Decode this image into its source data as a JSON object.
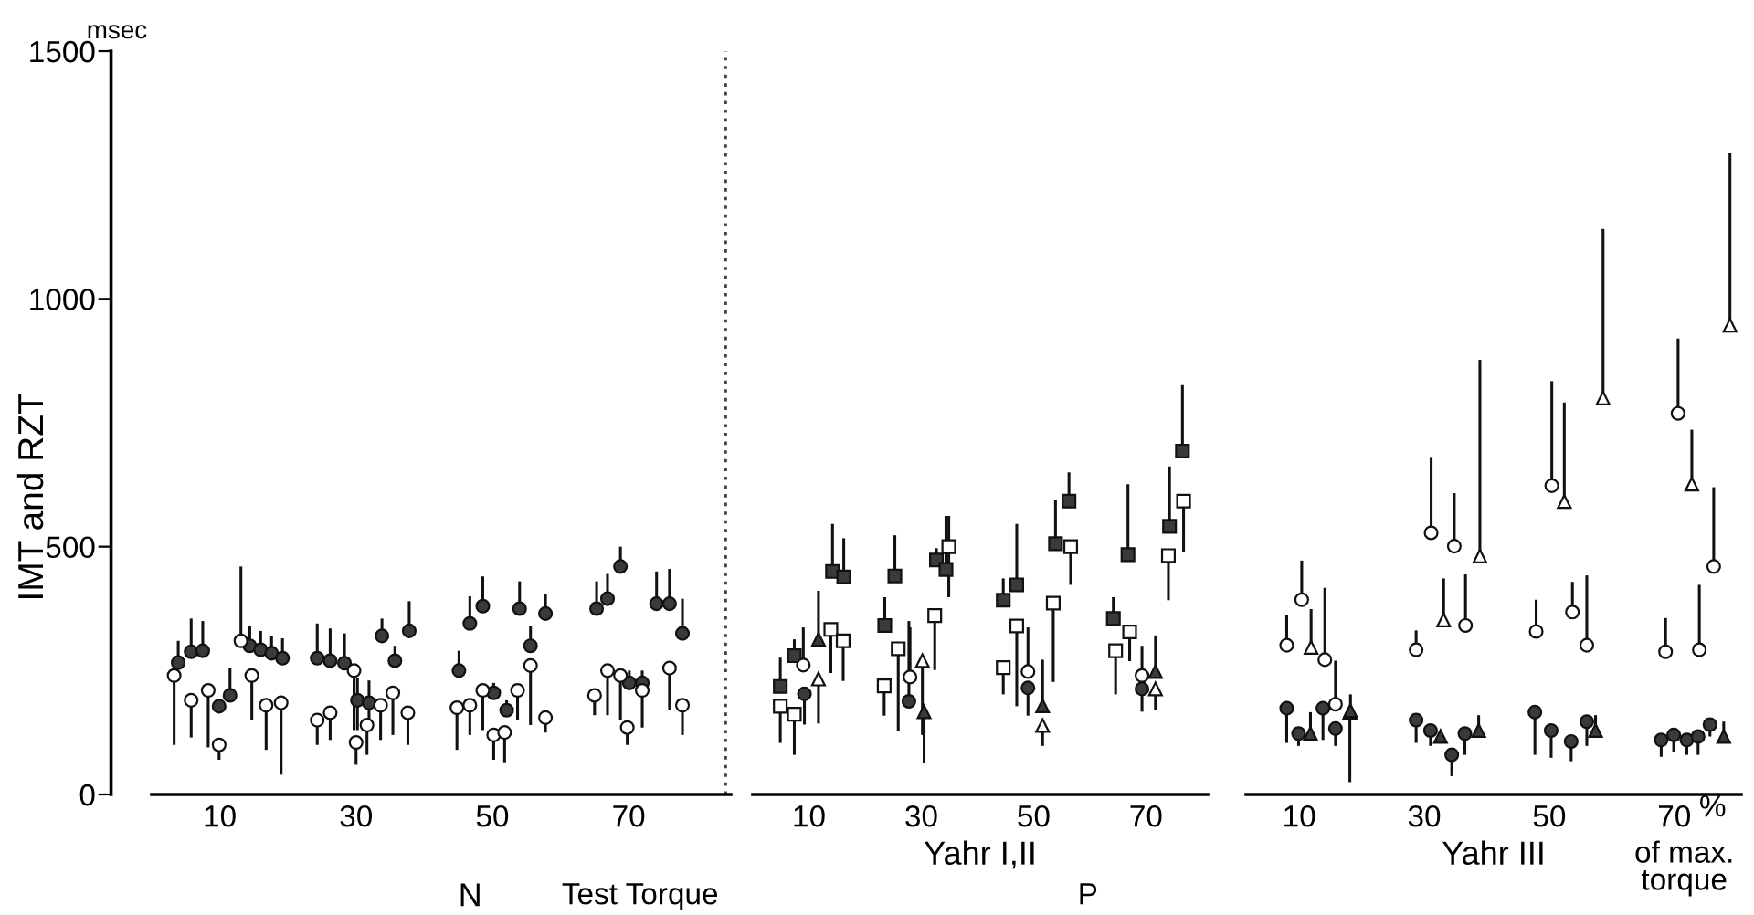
{
  "chart_data": [
    {
      "type": "scatter",
      "xlabel": "N",
      "ylabel": "IMT and RZT",
      "annotations": [
        "msec"
      ],
      "xlim": [
        0,
        85
      ],
      "ylim": [
        0,
        1500
      ],
      "xticks": [
        10,
        30,
        50,
        70
      ],
      "yticks": [
        0,
        500,
        1000,
        1500
      ],
      "ref_lines": [
        {
          "axis": "x",
          "value": 84.2,
          "line_style": "dotted",
          "color": "#444444"
        }
      ],
      "series": [
        {
          "type": "scatter",
          "marker": "circle",
          "color": "#3a3a3a",
          "x": [
            3.9,
            5.8,
            7.5,
            9.9,
            11.5,
            14.4,
            16.0,
            17.6,
            19.2,
            24.3,
            26.2,
            28.3,
            30.2,
            31.9,
            33.8,
            35.7,
            37.8,
            45.1,
            46.7,
            48.6,
            50.2,
            52.1,
            54.0,
            55.6,
            57.8,
            65.3,
            66.9,
            68.8,
            70.1,
            72.0,
            74.1,
            76.0,
            77.9
          ],
          "values": [
            266,
            288,
            290,
            178,
            200,
            300,
            292,
            285,
            275,
            275,
            270,
            265,
            190,
            185,
            320,
            270,
            330,
            250,
            345,
            380,
            205,
            170,
            375,
            300,
            365,
            375,
            395,
            460,
            225,
            225,
            385,
            385,
            325
          ],
          "errors": [
            [
              266,
              310
            ],
            [
              288,
              355
            ],
            [
              290,
              350
            ],
            null,
            [
              200,
              255
            ],
            [
              300,
              340
            ],
            [
              292,
              330
            ],
            [
              285,
              320
            ],
            [
              275,
              315
            ],
            [
              275,
              345
            ],
            [
              270,
              335
            ],
            [
              265,
              325
            ],
            [
              130,
              235
            ],
            [
              140,
              230
            ],
            [
              320,
              355
            ],
            [
              270,
              300
            ],
            [
              330,
              390
            ],
            [
              250,
              290
            ],
            [
              345,
              400
            ],
            [
              380,
              440
            ],
            [
              205,
              225
            ],
            [
              170,
              190
            ],
            [
              375,
              430
            ],
            [
              300,
              340
            ],
            [
              365,
              405
            ],
            [
              375,
              430
            ],
            [
              395,
              445
            ],
            [
              460,
              500
            ],
            [
              225,
              250
            ],
            [
              225,
              250
            ],
            [
              385,
              450
            ],
            [
              385,
              455
            ],
            [
              325,
              395
            ]
          ]
        },
        {
          "type": "scatter",
          "marker": "circle",
          "color": "#ffffff",
          "x": [
            3.3,
            5.8,
            8.3,
            9.9,
            13.1,
            14.7,
            16.8,
            19.0,
            24.3,
            26.2,
            29.7,
            30.0,
            31.6,
            33.6,
            35.4,
            37.6,
            44.8,
            46.7,
            48.6,
            50.2,
            51.8,
            53.7,
            55.6,
            57.8,
            65.0,
            66.9,
            68.8,
            69.8,
            72.0,
            76.0,
            77.9
          ],
          "values": [
            240,
            190,
            210,
            100,
            310,
            240,
            180,
            185,
            150,
            165,
            250,
            105,
            140,
            180,
            205,
            165,
            175,
            180,
            210,
            120,
            125,
            210,
            260,
            155,
            200,
            250,
            240,
            135,
            210,
            255,
            180
          ],
          "errors": [
            [
              100,
              240
            ],
            [
              115,
              190
            ],
            [
              95,
              210
            ],
            [
              70,
              100
            ],
            [
              310,
              460
            ],
            [
              150,
              240
            ],
            [
              90,
              180
            ],
            [
              40,
              185
            ],
            [
              100,
              150
            ],
            [
              110,
              165
            ],
            [
              130,
              250
            ],
            [
              60,
              105
            ],
            [
              80,
              140
            ],
            [
              110,
              180
            ],
            [
              120,
              205
            ],
            [
              100,
              165
            ],
            [
              90,
              175
            ],
            [
              120,
              180
            ],
            [
              130,
              210
            ],
            [
              70,
              120
            ],
            [
              65,
              125
            ],
            [
              150,
              210
            ],
            [
              140,
              260
            ],
            [
              125,
              155
            ],
            [
              160,
              200
            ],
            [
              160,
              250
            ],
            [
              150,
              240
            ],
            [
              100,
              135
            ],
            [
              135,
              210
            ],
            [
              170,
              255
            ],
            [
              120,
              180
            ]
          ]
        }
      ]
    },
    {
      "type": "scatter",
      "xlabel": "Yahr I,II",
      "annotations": [
        "Test Torque"
      ],
      "xlim": [
        0,
        81
      ],
      "ylim": [
        0,
        1500
      ],
      "xticks": [
        10,
        30,
        50,
        70
      ],
      "yticks": [
        0,
        500,
        1000,
        1500
      ],
      "tick_labels": "x",
      "series": [
        {
          "type": "scatter",
          "marker": "square",
          "color": "#3a3a3a",
          "x": [
            4.9,
            7.4,
            14.2,
            16.2,
            23.5,
            25.3,
            32.7,
            34.4,
            44.6,
            47.0,
            53.9,
            56.3,
            64.2,
            66.8,
            74.2,
            76.5
          ],
          "values": [
            218,
            280,
            450,
            439,
            341,
            441,
            473,
            454,
            392,
            423,
            506,
            592,
            355,
            484,
            541,
            693
          ],
          "errors": [
            [
              218,
              276
            ],
            [
              280,
              313
            ],
            [
              450,
              546
            ],
            [
              439,
              517
            ],
            [
              341,
              398
            ],
            [
              441,
              523
            ],
            [
              473,
              497
            ],
            [
              454,
              562
            ],
            [
              392,
              436
            ],
            [
              423,
              546
            ],
            [
              506,
              595
            ],
            [
              592,
              650
            ],
            [
              355,
              398
            ],
            [
              484,
              626
            ],
            [
              541,
              662
            ],
            [
              693,
              826
            ]
          ]
        },
        {
          "type": "scatter",
          "marker": "square",
          "color": "#ffffff",
          "x": [
            4.9,
            7.4,
            13.9,
            16.1,
            23.4,
            25.9,
            32.4,
            34.9,
            44.6,
            47.0,
            53.5,
            56.6,
            64.6,
            67.1,
            74.0,
            76.7
          ],
          "values": [
            178,
            162,
            333,
            310,
            219,
            294,
            361,
            500,
            256,
            340,
            386,
            500,
            290,
            328,
            482,
            592
          ],
          "errors": [
            [
              104,
              178
            ],
            [
              80,
              162
            ],
            [
              245,
              333
            ],
            [
              229,
              310
            ],
            [
              159,
              219
            ],
            [
              128,
              294
            ],
            [
              251,
              361
            ],
            [
              398,
              562
            ],
            [
              202,
              256
            ],
            [
              178,
              340
            ],
            [
              227,
              386
            ],
            [
              423,
              500
            ],
            [
              202,
              290
            ],
            [
              269,
              328
            ],
            [
              392,
              482
            ],
            [
              490,
              592
            ]
          ]
        },
        {
          "type": "scatter",
          "marker": "circle",
          "color": "#ffffff",
          "x": [
            9.0,
            28.0,
            49.0,
            69.3
          ],
          "values": [
            261,
            237,
            248,
            240
          ],
          "errors": [
            [
              261,
              337
            ],
            [
              237,
              337
            ],
            [
              248,
              337
            ],
            [
              240,
              300
            ]
          ]
        },
        {
          "type": "scatter",
          "marker": "circle",
          "color": "#3a3a3a",
          "x": [
            9.2,
            27.8,
            49.0,
            69.3
          ],
          "values": [
            203,
            188,
            215,
            213
          ],
          "errors": [
            [
              141,
              203
            ],
            [
              188,
              350
            ],
            [
              159,
              215
            ],
            [
              167,
              213
            ]
          ]
        },
        {
          "type": "scatter",
          "marker": "triangle",
          "color": "#3a3a3a",
          "x": [
            11.7,
            30.5,
            51.6,
            71.7
          ],
          "values": [
            313,
            167,
            179,
            248
          ],
          "errors": [
            [
              313,
              411
            ],
            [
              63,
              167
            ],
            [
              179,
              272
            ],
            [
              248,
              321
            ]
          ]
        },
        {
          "type": "scatter",
          "marker": "triangle",
          "color": "#ffffff",
          "x": [
            11.7,
            30.2,
            51.6,
            71.7
          ],
          "values": [
            233,
            270,
            139,
            213
          ],
          "errors": [
            [
              143,
              233
            ],
            [
              120,
              270
            ],
            [
              98,
              139
            ],
            [
              170,
              213
            ]
          ]
        }
      ]
    },
    {
      "type": "scatter",
      "xlabel": "Yahr III",
      "annotations": [
        "P",
        "%",
        "of max.\ntorque"
      ],
      "xlim": [
        1.5,
        80.7
      ],
      "ylim": [
        0,
        1500
      ],
      "xticks": [
        10,
        30,
        50,
        70
      ],
      "yticks": [
        0,
        500,
        1000,
        1500
      ],
      "tick_labels": "x",
      "series": [
        {
          "type": "scatter",
          "marker": "circle",
          "color": "#ffffff",
          "x": [
            8.0,
            10.4,
            14.1,
            15.8,
            28.7,
            31.1,
            34.8,
            36.6,
            47.9,
            50.4,
            53.7,
            56.0,
            68.6,
            70.6,
            74.0,
            76.3
          ],
          "values": [
            301,
            393,
            272,
            182,
            292,
            528,
            501,
            341,
            329,
            623,
            368,
            301,
            288,
            769,
            292,
            460
          ],
          "errors": [
            [
              301,
              362
            ],
            [
              393,
              472
            ],
            [
              272,
              417
            ],
            [
              182,
              270
            ],
            [
              292,
              331
            ],
            [
              528,
              681
            ],
            [
              501,
              608
            ],
            [
              341,
              444
            ],
            [
              329,
              393
            ],
            [
              623,
              834
            ],
            [
              368,
              429
            ],
            [
              301,
              442
            ],
            [
              288,
              356
            ],
            [
              769,
              920
            ],
            [
              292,
              423
            ],
            [
              460,
              620
            ]
          ]
        },
        {
          "type": "scatter",
          "marker": "triangle",
          "color": "#ffffff",
          "x": [
            11.9,
            18.1,
            33.1,
            38.9,
            52.4,
            58.6,
            72.8,
            78.9
          ],
          "values": [
            297,
            166,
            352,
            481,
            591,
            800,
            626,
            947
          ],
          "errors": [
            [
              297,
              374
            ],
            [
              25,
              166
            ],
            [
              352,
              436
            ],
            [
              481,
              877
            ],
            [
              591,
              791
            ],
            [
              800,
              1141
            ],
            [
              626,
              736
            ],
            [
              947,
              1294
            ]
          ]
        },
        {
          "type": "scatter",
          "marker": "circle",
          "color": "#3a3a3a",
          "x": [
            8.0,
            9.9,
            13.8,
            15.8,
            28.7,
            31.0,
            34.4,
            36.5,
            47.7,
            50.3,
            53.5,
            56.0,
            67.9,
            69.9,
            72.0,
            73.8,
            75.7
          ],
          "values": [
            174,
            123,
            174,
            133,
            150,
            129,
            80,
            123,
            166,
            129,
            107,
            147,
            110,
            120,
            110,
            117,
            141
          ],
          "errors": [
            [
              104,
              174
            ],
            [
              98,
              123
            ],
            [
              110,
              174
            ],
            [
              98,
              133
            ],
            [
              104,
              150
            ],
            [
              98,
              129
            ],
            [
              37,
              80
            ],
            [
              80,
              123
            ],
            [
              80,
              166
            ],
            [
              74,
              129
            ],
            [
              67,
              107
            ],
            [
              98,
              147
            ],
            [
              76,
              110
            ],
            [
              86,
              120
            ],
            [
              80,
              110
            ],
            [
              80,
              117
            ],
            [
              117,
              141
            ]
          ]
        },
        {
          "type": "scatter",
          "marker": "triangle",
          "color": "#3a3a3a",
          "x": [
            11.8,
            18.2,
            32.6,
            38.7,
            57.4,
            77.9
          ],
          "values": [
            123,
            169,
            117,
            129,
            129,
            117
          ],
          "errors": [
            [
              123,
              166
            ],
            [
              169,
              202
            ],
            null,
            [
              129,
              160
            ],
            [
              129,
              160
            ],
            [
              117,
              147
            ]
          ]
        }
      ]
    }
  ]
}
